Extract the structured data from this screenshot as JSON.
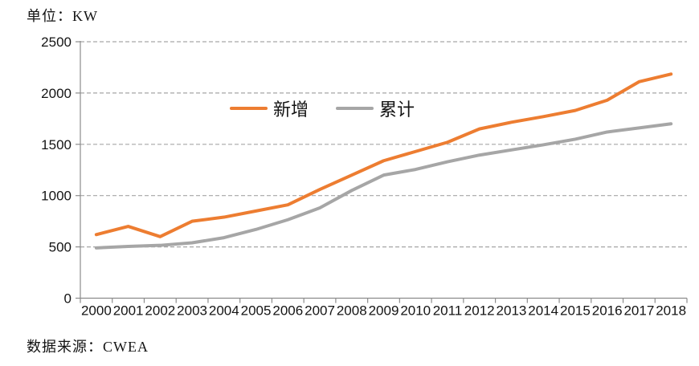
{
  "header": {
    "unit_label": "单位：KW"
  },
  "source_note": "数据来源：CWEA",
  "legend": {
    "items": [
      {
        "label": "新增"
      },
      {
        "label": "累计"
      }
    ]
  },
  "chart_data": {
    "type": "line",
    "title": "",
    "unit_label": "单位：KW",
    "source": "数据来源：CWEA",
    "x": [
      2000,
      2001,
      2002,
      2003,
      2004,
      2005,
      2006,
      2007,
      2008,
      2009,
      2010,
      2011,
      2012,
      2013,
      2014,
      2015,
      2016,
      2017,
      2018
    ],
    "series": [
      {
        "name": "新增",
        "color": "#ED7D31",
        "values": [
          620,
          700,
          600,
          750,
          790,
          850,
          910,
          1060,
          1200,
          1340,
          1430,
          1520,
          1650,
          1715,
          1770,
          1830,
          1930,
          2110,
          2185
        ]
      },
      {
        "name": "累计",
        "color": "#A6A6A6",
        "values": [
          490,
          505,
          515,
          540,
          590,
          670,
          765,
          880,
          1050,
          1200,
          1255,
          1330,
          1395,
          1445,
          1495,
          1550,
          1620,
          1660,
          1700
        ]
      }
    ],
    "ylim": [
      0,
      2500
    ],
    "yticks": [
      0,
      500,
      1000,
      1500,
      2000,
      2500
    ],
    "grid": "horizontal-dashed",
    "grid_color": "#A6A6A6",
    "axis_color": "#8C8C8C",
    "legend_position": "top-center"
  }
}
